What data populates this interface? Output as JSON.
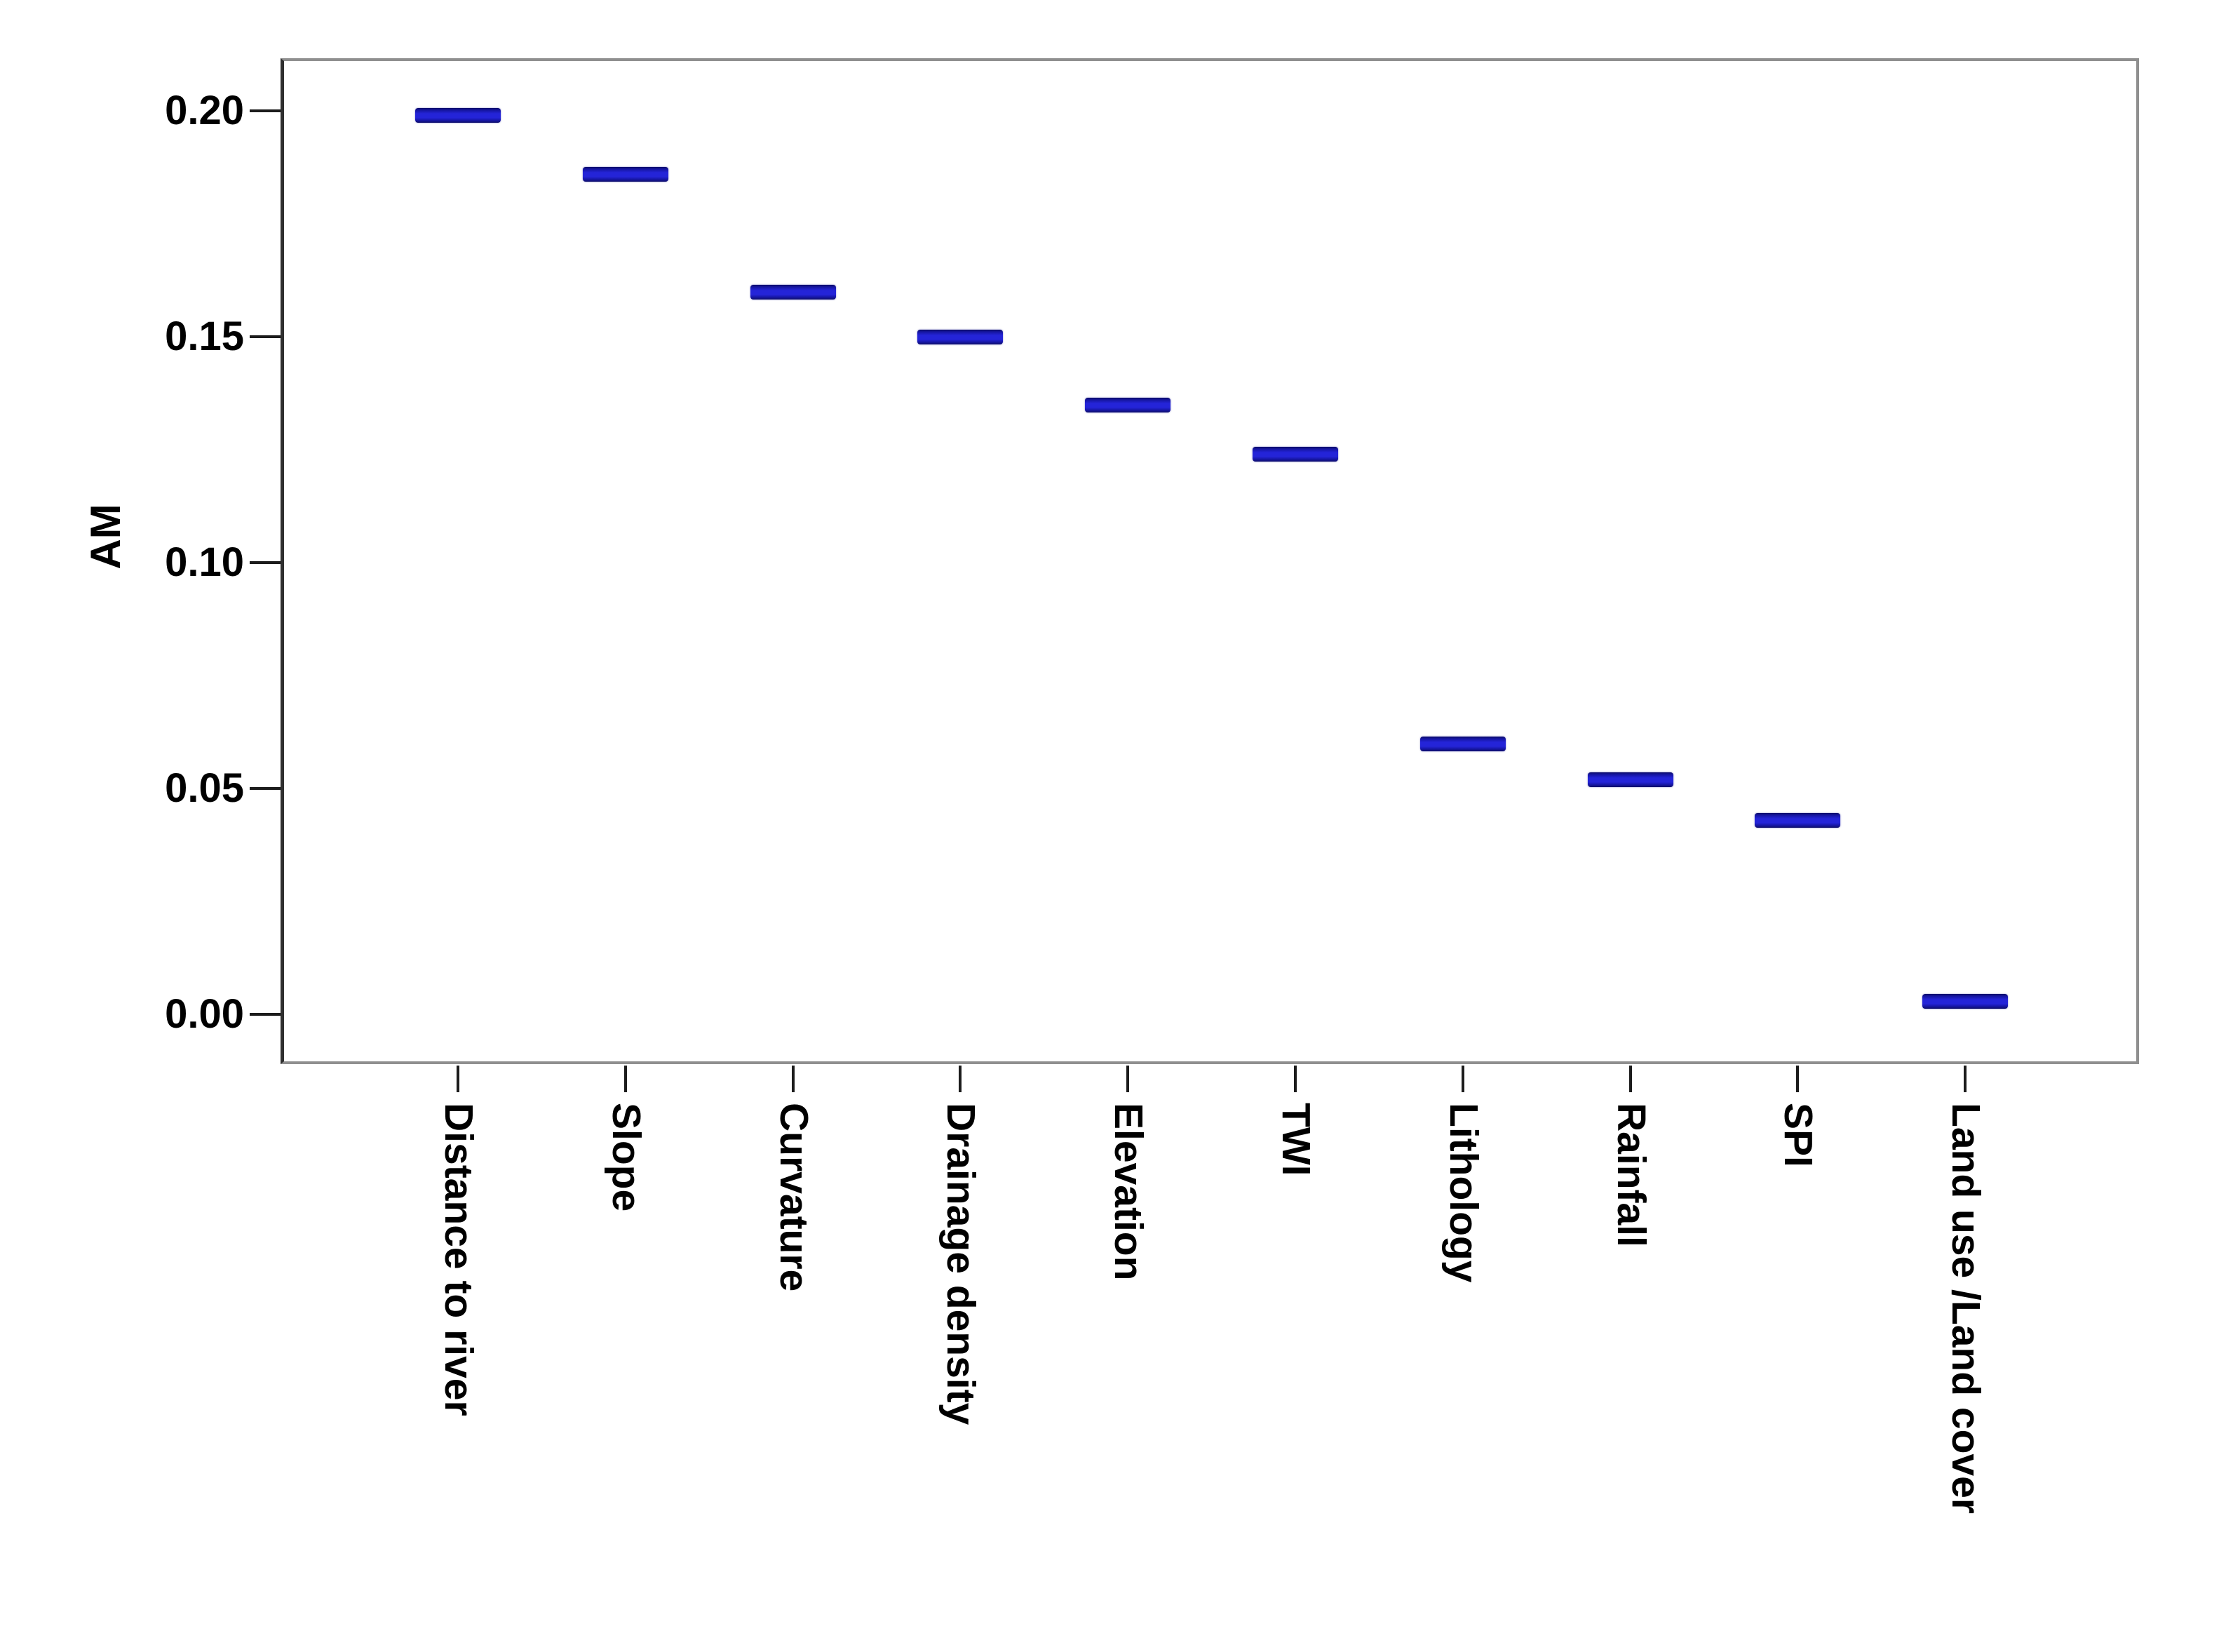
{
  "chart_data": {
    "type": "scatter",
    "marker_style": "horizontal-dash",
    "title": "",
    "xlabel": "",
    "ylabel": "AM",
    "categories": [
      "Distance to river",
      "Slope",
      "Curvature",
      "Drainage density",
      "Elevation",
      "TWI",
      "Lithology",
      "Rainfall",
      "SPI",
      "Land use /Land cover"
    ],
    "values": [
      0.199,
      0.186,
      0.16,
      0.15,
      0.135,
      0.124,
      0.06,
      0.052,
      0.043,
      0.003
    ],
    "yticks": [
      0.0,
      0.05,
      0.1,
      0.15,
      0.2
    ],
    "ytick_labels": [
      "0.00",
      "0.05",
      "0.10",
      "0.15",
      "0.20"
    ],
    "ylim": [
      -0.011,
      0.212
    ],
    "grid": false,
    "legend": false,
    "colors": {
      "marker_fill": "#2424d8",
      "marker_edge": "#0c0c66",
      "frame": "#8f8f8f",
      "y_axis_line": "#2f2f2f",
      "tick": "#1c1c1c",
      "text": "#000000",
      "background": "#ffffff"
    }
  }
}
